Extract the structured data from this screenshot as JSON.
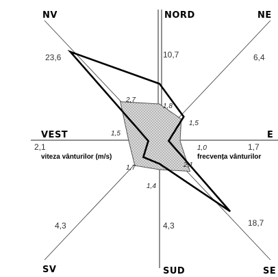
{
  "chart_data": {
    "type": "radar",
    "directions": [
      "NORD",
      "NE",
      "E",
      "SE",
      "SUD",
      "SV",
      "VEST",
      "NV"
    ],
    "direction_labels": {
      "NORD": "NORD",
      "NE": "NE",
      "E": "E",
      "SE": "SE",
      "SUD": "SUD",
      "SV": "SV",
      "VEST": "VEST",
      "NV": "NV"
    },
    "series": [
      {
        "name": "frecvența vânturilor",
        "values": [
          10.7,
          6.4,
          1.7,
          18.7,
          4.3,
          4.3,
          2.1,
          23.6
        ],
        "labels": [
          "10,7",
          "6,4",
          "1,7",
          "18,7",
          "4,3",
          "4,3",
          "2,1",
          "23,6"
        ],
        "style": "thick-line"
      },
      {
        "name": "viteza vânturilor (m/s)",
        "values": [
          1.8,
          1.5,
          1.0,
          2.1,
          1.4,
          1.7,
          1.5,
          2.7
        ],
        "labels": [
          "1,8",
          "1,5",
          "1,0",
          "2,1",
          "1,4",
          "1,7",
          "1,5",
          "2,7"
        ],
        "style": "dotted-fill"
      }
    ],
    "legend": {
      "frequency": "frecvența vânturilor",
      "speed": "viteza vânturilor (m/s)"
    },
    "colors": {
      "frequency_line": "#000000",
      "speed_line": "#555555",
      "speed_fill": "#d9d9d9",
      "axis": "#222222"
    }
  }
}
